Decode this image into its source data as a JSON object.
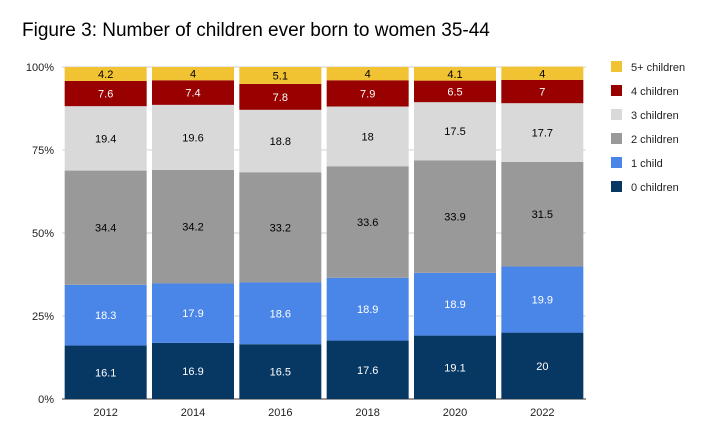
{
  "chart_data": {
    "type": "bar",
    "stacked": true,
    "title": "Figure 3: Number of children ever born to women 35-44",
    "categories": [
      "2012",
      "2014",
      "2016",
      "2018",
      "2020",
      "2022"
    ],
    "ylim": [
      0,
      100
    ],
    "yticks": [
      "0%",
      "25%",
      "50%",
      "75%",
      "100%"
    ],
    "grid": true,
    "legend_position": "right",
    "series": [
      {
        "name": "0 children",
        "color": "#073763",
        "label_color": "#ffffff",
        "values": [
          16.1,
          16.9,
          16.5,
          17.6,
          19.1,
          20
        ]
      },
      {
        "name": "1 child",
        "color": "#4a86e8",
        "label_color": "#ffffff",
        "values": [
          18.3,
          17.9,
          18.6,
          18.9,
          18.9,
          19.9
        ]
      },
      {
        "name": "2 children",
        "color": "#999999",
        "label_color": "#000000",
        "values": [
          34.4,
          34.2,
          33.2,
          33.6,
          33.9,
          31.5
        ]
      },
      {
        "name": "3 children",
        "color": "#d9d9d9",
        "label_color": "#000000",
        "values": [
          19.4,
          19.6,
          18.8,
          18,
          17.5,
          17.7
        ]
      },
      {
        "name": "4 children",
        "color": "#990000",
        "label_color": "#ffffff",
        "values": [
          7.6,
          7.4,
          7.8,
          7.9,
          6.5,
          7
        ]
      },
      {
        "name": "5+ children",
        "color": "#f1c232",
        "label_color": "#000000",
        "values": [
          4.2,
          4,
          5.1,
          4,
          4.1,
          4
        ]
      }
    ]
  }
}
